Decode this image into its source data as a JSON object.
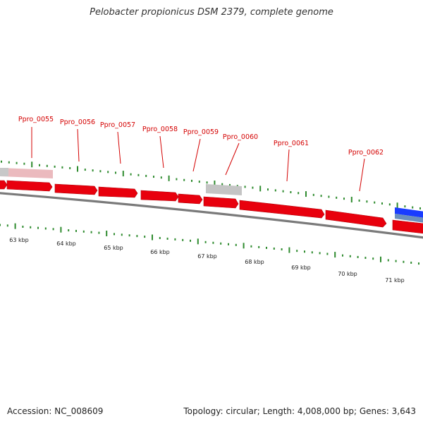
{
  "title": "Pelobacter propionicus DSM 2379, complete genome",
  "footer": {
    "accession": "Accession: NC_008609",
    "summary": "Topology: circular; Length: 4,008,000 bp; Genes: 3,643"
  },
  "colors": {
    "gene_forward": "#e8000d",
    "gene_reverse": "#1a3cff",
    "gene_other": "#b0b0b0",
    "backbone": "#7a7a7a",
    "ticks": "#2e8b2e",
    "label": "#d40000"
  },
  "genes": [
    {
      "label": "Ppro_0055"
    },
    {
      "label": "Ppro_0056"
    },
    {
      "label": "Ppro_0057"
    },
    {
      "label": "Ppro_0058"
    },
    {
      "label": "Ppro_0059"
    },
    {
      "label": "Ppro_0060"
    },
    {
      "label": "Ppro_0061"
    },
    {
      "label": "Ppro_0062"
    }
  ],
  "scale_labels": [
    "63 kbp",
    "64 kbp",
    "65 kbp",
    "66 kbp",
    "67 kbp",
    "68 kbp",
    "69 kbp",
    "70 kbp",
    "71 kbp"
  ]
}
